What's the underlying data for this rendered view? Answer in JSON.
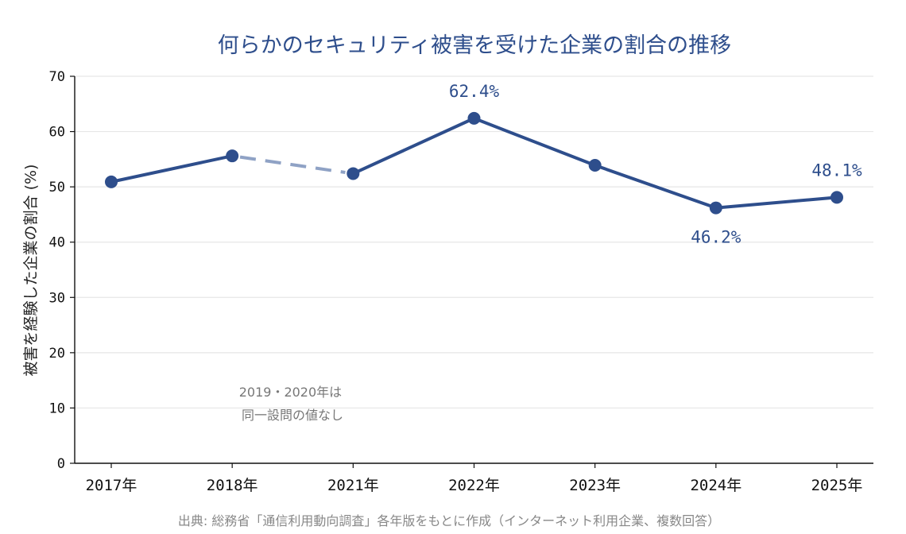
{
  "chart_data": {
    "type": "line",
    "title": "何らかのセキュリティ被害を受けた企業の割合の推移",
    "ylabel": "被害を経験した企業の割合 (%)",
    "xlabel": "",
    "categories": [
      "2017年",
      "2018年",
      "2021年",
      "2022年",
      "2023年",
      "2024年",
      "2025年"
    ],
    "values": [
      50.9,
      55.6,
      52.4,
      62.4,
      53.9,
      46.2,
      48.1
    ],
    "ylim": [
      0,
      70
    ],
    "yticks": [
      0,
      10,
      20,
      30,
      40,
      50,
      60,
      70
    ],
    "grid": "horizontal",
    "dashed_segment": [
      "2018年",
      "2021年"
    ],
    "data_labels": [
      {
        "category": "2022年",
        "text": "62.4%",
        "position": "above"
      },
      {
        "category": "2024年",
        "text": "46.2%",
        "position": "below"
      },
      {
        "category": "2025年",
        "text": "48.1%",
        "position": "above"
      }
    ],
    "annotation": {
      "lines": [
        "2019・2020年は",
        "同一設問の値なし"
      ],
      "near": "between 2018年 and 2021年"
    },
    "colors": {
      "line": "#2e4e8c",
      "dashed": "#8fa2c5",
      "grid": "#e6e6e6",
      "axis": "#111111",
      "title": "#2e4e8c",
      "note": "#777777"
    }
  },
  "source": "出典: 総務省「通信利用動向調査」各年版をもとに作成（インターネット利用企業、複数回答）"
}
